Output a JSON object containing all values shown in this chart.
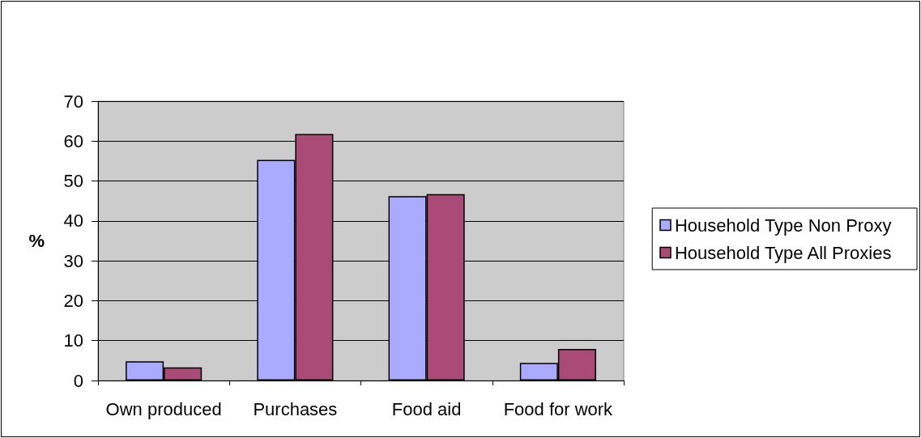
{
  "chart_data": {
    "type": "bar",
    "ylabel": "%",
    "categories": [
      "Own produced",
      "Purchases",
      "Food aid",
      "Food for work"
    ],
    "series": [
      {
        "name": "Household Type Non Proxy",
        "color": "#aaaaff",
        "values": [
          4.8,
          55.3,
          46.2,
          4.4
        ]
      },
      {
        "name": "Household Type All Proxies",
        "color": "#aa4a76",
        "values": [
          3.3,
          61.8,
          46.7,
          7.9
        ]
      }
    ],
    "ylim": [
      0,
      70
    ],
    "yticks": [
      0,
      10,
      20,
      30,
      40,
      50,
      60,
      70
    ],
    "grid": "y",
    "legend": "right"
  }
}
